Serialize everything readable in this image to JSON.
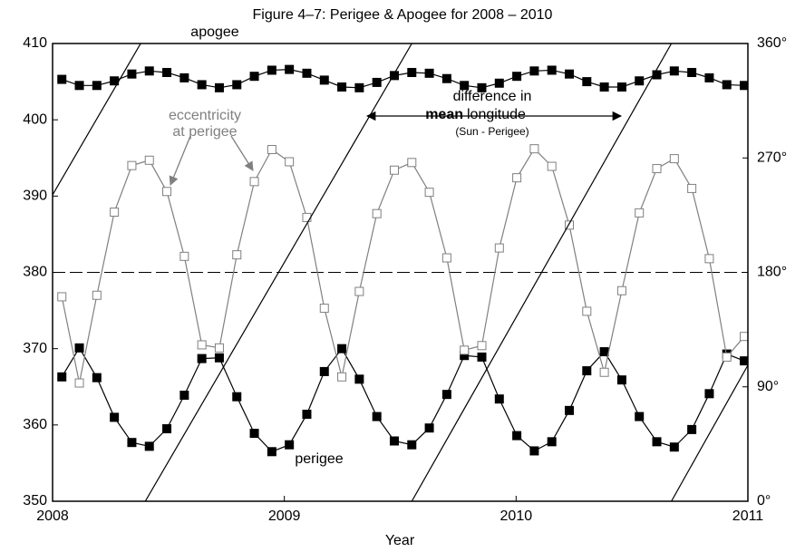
{
  "chart_data": {
    "type": "line",
    "title": "Figure 4–7:  Perigee & Apogee for 2008 – 2010",
    "xlabel": "Year",
    "xlim": [
      2008,
      2011
    ],
    "xticks": [
      2008,
      2009,
      2010,
      2011
    ],
    "ylim": [
      350,
      410
    ],
    "yticks": [
      350,
      360,
      370,
      380,
      390,
      400,
      410
    ],
    "y2lim": [
      0,
      360
    ],
    "y2ticks": [
      {
        "value": 0,
        "label": "0°"
      },
      {
        "value": 90,
        "label": "90°"
      },
      {
        "value": 180,
        "label": "180°"
      },
      {
        "value": 270,
        "label": "270°"
      },
      {
        "value": 360,
        "label": "360°"
      }
    ],
    "reference_line": 380,
    "annotations": [
      "eccentricity",
      "at perigee",
      "difference in",
      "mean",
      "longitude",
      "(Sun - Perigee)"
    ],
    "series": [
      {
        "name": "apogee",
        "color": "#000000",
        "marker": "filled",
        "x": [
          2008.04,
          2008.1155,
          2008.191,
          2008.2665,
          2008.342,
          2008.4175,
          2008.493,
          2008.5685,
          2008.644,
          2008.7195,
          2008.795,
          2008.8705,
          2008.946,
          2009.0215,
          2009.097,
          2009.1725,
          2009.248,
          2009.3235,
          2009.399,
          2009.4745,
          2009.55,
          2009.6255,
          2009.701,
          2009.7765,
          2009.852,
          2009.9275,
          2010.003,
          2010.0785,
          2010.154,
          2010.2295,
          2010.305,
          2010.3805,
          2010.456,
          2010.5315,
          2010.607,
          2010.6825,
          2010.758,
          2010.8335,
          2010.909,
          2010.9845
        ],
        "values": [
          405.3,
          404.5,
          404.5,
          405.1,
          406.0,
          406.4,
          406.2,
          405.5,
          404.6,
          404.2,
          404.6,
          405.7,
          406.5,
          406.6,
          406.1,
          405.2,
          404.3,
          404.2,
          404.9,
          405.8,
          406.2,
          406.1,
          405.4,
          404.5,
          404.2,
          404.8,
          405.7,
          406.4,
          406.5,
          406.0,
          405.0,
          404.3,
          404.3,
          405.1,
          405.9,
          406.4,
          406.2,
          405.5,
          404.6,
          404.5
        ]
      },
      {
        "name": "perigee",
        "color": "#000000",
        "marker": "filled",
        "x": [
          2008.04,
          2008.1155,
          2008.191,
          2008.2665,
          2008.342,
          2008.4175,
          2008.493,
          2008.5685,
          2008.644,
          2008.7195,
          2008.795,
          2008.8705,
          2008.946,
          2009.0215,
          2009.097,
          2009.1725,
          2009.248,
          2009.3235,
          2009.399,
          2009.4745,
          2009.55,
          2009.6255,
          2009.701,
          2009.7765,
          2009.852,
          2009.9275,
          2010.003,
          2010.0785,
          2010.154,
          2010.2295,
          2010.305,
          2010.3805,
          2010.456,
          2010.5315,
          2010.607,
          2010.6825,
          2010.758,
          2010.8335,
          2010.909,
          2010.9845
        ],
        "values": [
          366.3,
          370.1,
          366.2,
          361.0,
          357.7,
          357.2,
          359.5,
          363.9,
          368.7,
          368.8,
          363.7,
          358.9,
          356.5,
          357.4,
          361.4,
          367.0,
          370.0,
          366.0,
          361.1,
          357.9,
          357.4,
          359.6,
          364.0,
          369.1,
          368.9,
          363.4,
          358.6,
          356.6,
          357.8,
          361.9,
          367.1,
          369.6,
          365.9,
          361.1,
          357.8,
          357.1,
          359.4,
          364.1,
          369.3,
          368.4
        ]
      },
      {
        "color": "#808080",
        "marker": "hollow",
        "x": [
          2008.04,
          2008.1155,
          2008.191,
          2008.2665,
          2008.342,
          2008.4175,
          2008.493,
          2008.5685,
          2008.644,
          2008.7195,
          2008.795,
          2008.8705,
          2008.946,
          2009.0215,
          2009.097,
          2009.1725,
          2009.248,
          2009.3235,
          2009.399,
          2009.4745,
          2009.55,
          2009.6255,
          2009.701,
          2009.7765,
          2009.852,
          2009.9275,
          2010.003,
          2010.0785,
          2010.154,
          2010.2295,
          2010.305,
          2010.3805,
          2010.456,
          2010.5315,
          2010.607,
          2010.6825,
          2010.758,
          2010.8335,
          2010.909,
          2010.9845
        ],
        "values": [
          376.8,
          365.5,
          377.0,
          387.9,
          394.0,
          394.7,
          390.6,
          382.1,
          370.5,
          370.1,
          382.3,
          391.9,
          396.1,
          394.5,
          387.2,
          375.3,
          366.3,
          377.5,
          387.7,
          393.4,
          394.4,
          390.5,
          381.9,
          369.8,
          370.4,
          383.2,
          392.4,
          396.2,
          393.9,
          386.2,
          374.9,
          366.9,
          377.6,
          387.8,
          393.6,
          394.9,
          391.0,
          381.8,
          368.9,
          371.6
        ]
      },
      {
        "color": "#000000",
        "marker": "none",
        "axis": "y2",
        "x": [
          2008,
          2008.38,
          null,
          2008.4,
          2009.55,
          null,
          2009.55,
          2010.67,
          null,
          2010.67,
          2011
        ],
        "values": [
          241,
          360,
          null,
          0,
          360,
          null,
          0,
          360,
          null,
          0,
          107
        ]
      }
    ]
  }
}
